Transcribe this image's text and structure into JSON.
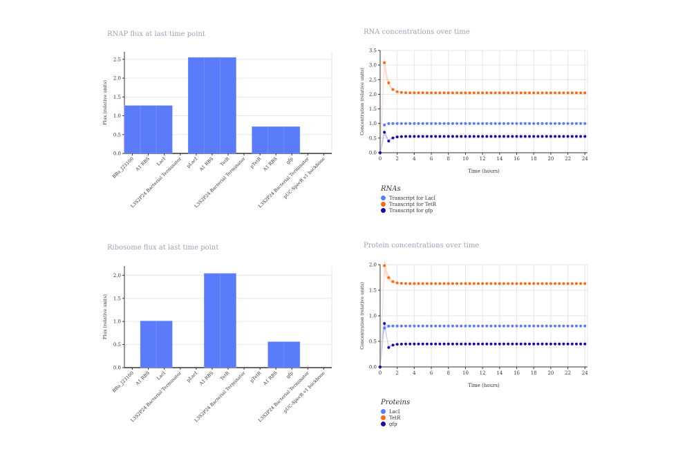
{
  "colors": {
    "blue": "#5b7cfa",
    "orange": "#fb6a13",
    "navy": "#1a0aa8",
    "title": "#a0a0b8"
  },
  "chart_data": [
    {
      "id": "rnap",
      "type": "bar",
      "title": "RNAP flux at last time point",
      "ylabel": "Flux (relative units)",
      "xlabel": "",
      "ylim": [
        0,
        2.7
      ],
      "yticks": [
        0.0,
        0.5,
        1.0,
        1.5,
        2.0,
        2.5
      ],
      "categories": [
        "BBa_J23100",
        "A1 RBS",
        "LacI",
        "L3S2P24 Bacterial Terminator",
        "pLacI",
        "A1 RBS",
        "TetR",
        "L3S2P24 Bacterial Terminator",
        "pTetR",
        "A1 RBS",
        "gfp",
        "L3S2P24 Bacterial Terminator",
        "pUC-SpecR v1 backbone"
      ],
      "values": [
        1.27,
        1.27,
        1.27,
        0,
        2.55,
        2.55,
        2.55,
        0,
        0.71,
        0.71,
        0.71,
        0,
        0
      ]
    },
    {
      "id": "ribo",
      "type": "bar",
      "title": "Ribosome flux at last time point",
      "ylabel": "Flux (relative units)",
      "xlabel": "",
      "ylim": [
        0,
        2.2
      ],
      "yticks": [
        0.0,
        0.5,
        1.0,
        1.5,
        2.0
      ],
      "categories": [
        "BBa_J23100",
        "A1 RBS",
        "LacI",
        "L3S2P24 Bacterial Terminator",
        "pLacI",
        "A1 RBS",
        "TetR",
        "L3S2P24 Bacterial Terminator",
        "pTetR",
        "A1 RBS",
        "gfp",
        "L3S2P24 Bacterial Terminator",
        "pUC-SpecR v1 backbone"
      ],
      "values": [
        0,
        1.01,
        1.01,
        0,
        0,
        2.04,
        2.04,
        0,
        0,
        0.56,
        0.56,
        0,
        0
      ]
    },
    {
      "id": "rna",
      "type": "scatter",
      "title": "RNA concentrations over time",
      "xlabel": "Time (hours)",
      "ylabel": "Concentration (relative units)",
      "xlim": [
        0,
        24.3
      ],
      "ylim": [
        0,
        3.5
      ],
      "xticks": [
        0,
        2,
        4,
        6,
        8,
        10,
        12,
        14,
        16,
        18,
        20,
        22,
        24
      ],
      "yticks": [
        0.0,
        0.5,
        1.0,
        1.5,
        2.0,
        2.5,
        3.0,
        3.5
      ],
      "legend_title": "RNAs",
      "series": [
        {
          "name": "Transcript for LacI",
          "color": "#5b7cfa",
          "start": 0,
          "peak": 1.0,
          "steady": 1.0,
          "spread": 0.05
        },
        {
          "name": "Transcript for TetR",
          "color": "#fb6a13",
          "start": 0,
          "peak": 3.08,
          "steady": 2.05,
          "spread": 0.6
        },
        {
          "name": "Transcript for gfp",
          "color": "#1a0aa8",
          "start": 0,
          "peak": 0.7,
          "dip": 0.4,
          "steady": 0.56,
          "spread": 0.25
        }
      ]
    },
    {
      "id": "protein",
      "type": "scatter",
      "title": "Protein concentrations over time",
      "xlabel": "Time (hours)",
      "ylabel": "Concentration (relative units)",
      "xlim": [
        0,
        24.3
      ],
      "ylim": [
        0,
        2.0
      ],
      "xticks": [
        0,
        2,
        4,
        6,
        8,
        10,
        12,
        14,
        16,
        18,
        20,
        22,
        24
      ],
      "yticks": [
        0.0,
        0.5,
        1.0,
        1.5,
        2.0
      ],
      "legend_title": "Proteins",
      "series": [
        {
          "name": "LacI",
          "color": "#5b7cfa",
          "start": 0,
          "peak": 0.8,
          "steady": 0.8,
          "spread": 0.15
        },
        {
          "name": "TetR",
          "color": "#fb6a13",
          "start": 0,
          "peak": 1.98,
          "steady": 1.63,
          "spread": 0.35
        },
        {
          "name": "gfp",
          "color": "#1a0aa8",
          "start": 0,
          "peak": 0.85,
          "dip": 0.38,
          "steady": 0.45,
          "spread": 0.2
        }
      ]
    }
  ]
}
